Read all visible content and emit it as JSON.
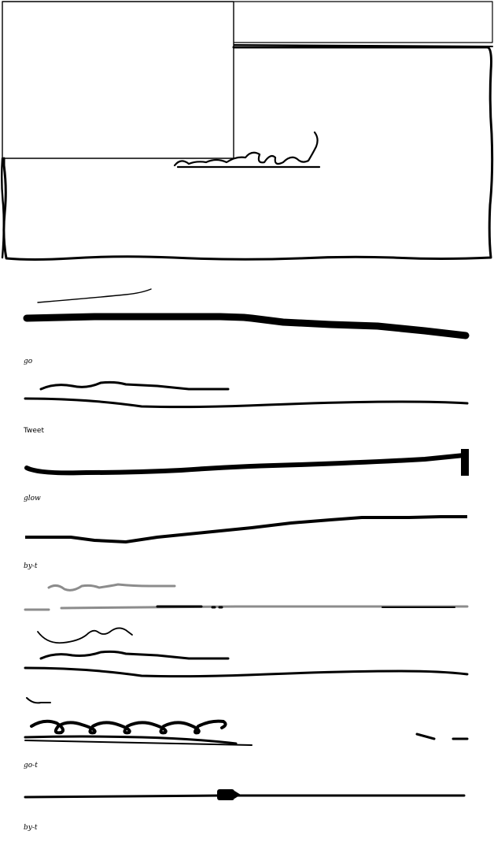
{
  "sketch": {
    "labels": [
      "go",
      "Tweet",
      "glow",
      "by-t",
      "go-t",
      "by-t"
    ],
    "stroke_color": "#000000",
    "gray_stroke_color": "#8c8c8c",
    "background_color": "#ffffff"
  }
}
